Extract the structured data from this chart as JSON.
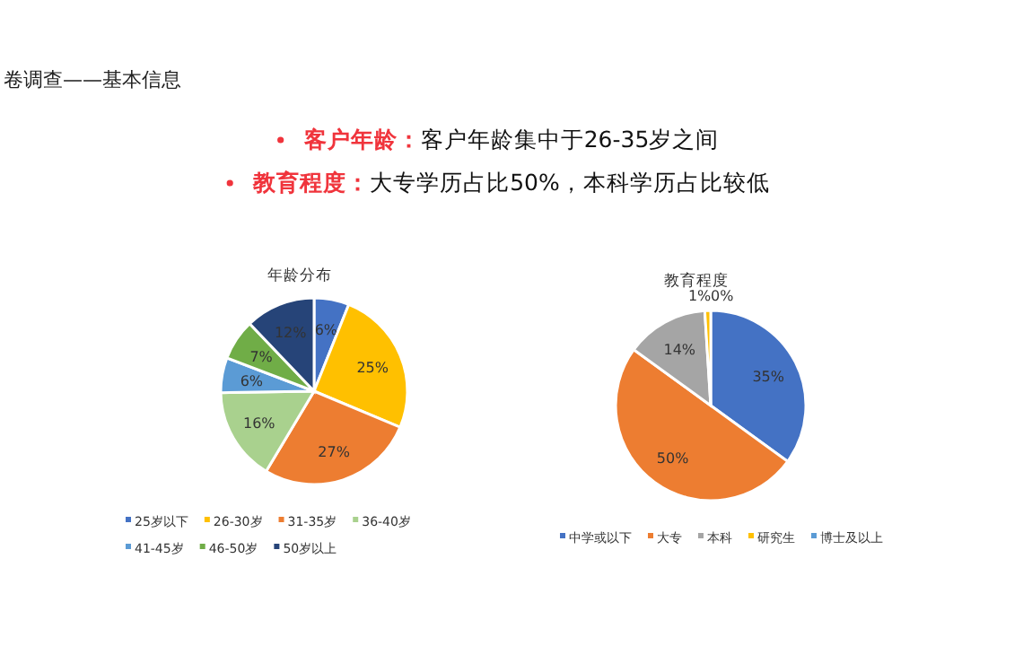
{
  "chart_data": [
    {
      "type": "pie",
      "title": "年龄分布",
      "annotations": [
        "卷调查——基本信息",
        "客户年龄：客户年龄集中于26-35岁之间",
        "教育程度：大专学历占比50%，本科学历占比较低"
      ],
      "categories": [
        "25岁以下",
        "26-30岁",
        "31-35岁",
        "36-40岁",
        "41-45岁",
        "46-50岁",
        "50岁以上"
      ],
      "values": [
        6,
        25,
        27,
        16,
        6,
        7,
        12
      ],
      "value_labels": [
        "6%",
        "25%",
        "27%",
        "16%",
        "6%",
        "7%",
        "12%"
      ],
      "colors": [
        "#4472c4",
        "#ffc000",
        "#ed7d31",
        "#a9d18e",
        "#5b9bd5",
        "#70ad47",
        "#264478"
      ],
      "legend": "bottom"
    },
    {
      "type": "pie",
      "title": "教育程度",
      "categories": [
        "中学或以下",
        "大专",
        "本科",
        "研究生",
        "博士及以上"
      ],
      "values": [
        35,
        50,
        14,
        1,
        0
      ],
      "value_labels": [
        "35%",
        "50%",
        "14%",
        "1%",
        "0%"
      ],
      "colors": [
        "#4472c4",
        "#ed7d31",
        "#a5a5a5",
        "#ffc000",
        "#5b9bd5"
      ],
      "legend": "bottom"
    }
  ]
}
